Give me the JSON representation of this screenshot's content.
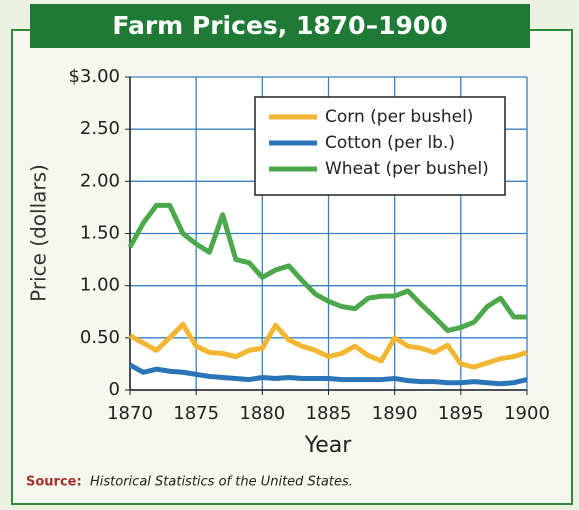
{
  "chart_data": {
    "type": "line",
    "title": "Farm Prices, 1870–1900",
    "x_label": "Year",
    "y_label": "Price (dollars)",
    "source_label": "Source:",
    "source_text": "Historical Statistics of the United States.",
    "x": [
      1870,
      1871,
      1872,
      1873,
      1874,
      1875,
      1876,
      1877,
      1878,
      1879,
      1880,
      1881,
      1882,
      1883,
      1884,
      1885,
      1886,
      1887,
      1888,
      1889,
      1890,
      1891,
      1892,
      1893,
      1894,
      1895,
      1896,
      1897,
      1898,
      1899,
      1900
    ],
    "series": [
      {
        "name": "Corn (per bushel)",
        "color": "#f2b632",
        "values": [
          0.52,
          0.45,
          0.38,
          0.5,
          0.63,
          0.42,
          0.36,
          0.35,
          0.32,
          0.38,
          0.4,
          0.62,
          0.48,
          0.42,
          0.38,
          0.32,
          0.35,
          0.42,
          0.33,
          0.28,
          0.5,
          0.42,
          0.4,
          0.36,
          0.43,
          0.25,
          0.22,
          0.26,
          0.3,
          0.32,
          0.36
        ]
      },
      {
        "name": "Cotton (per lb.)",
        "color": "#2a74b8",
        "values": [
          0.24,
          0.17,
          0.2,
          0.18,
          0.17,
          0.15,
          0.13,
          0.12,
          0.11,
          0.1,
          0.12,
          0.11,
          0.12,
          0.11,
          0.11,
          0.11,
          0.1,
          0.1,
          0.1,
          0.1,
          0.11,
          0.09,
          0.08,
          0.08,
          0.07,
          0.07,
          0.08,
          0.07,
          0.06,
          0.07,
          0.1
        ]
      },
      {
        "name": "Wheat (per bushel)",
        "color": "#4ca84a",
        "values": [
          1.37,
          1.6,
          1.77,
          1.77,
          1.5,
          1.4,
          1.32,
          1.68,
          1.25,
          1.22,
          1.08,
          1.15,
          1.19,
          1.05,
          0.92,
          0.85,
          0.8,
          0.78,
          0.88,
          0.9,
          0.9,
          0.95,
          0.82,
          0.7,
          0.57,
          0.6,
          0.65,
          0.8,
          0.88,
          0.7,
          0.7
        ]
      }
    ],
    "xlim": [
      1870,
      1900
    ],
    "xticks": [
      1870,
      1875,
      1880,
      1885,
      1890,
      1895,
      1900
    ],
    "ylim": [
      0,
      3
    ],
    "yticks": [
      0,
      {
        "value": 0.5,
        "label": "0.50"
      },
      {
        "value": 1,
        "label": "1.00"
      },
      {
        "value": 1.5,
        "label": "1.50"
      },
      {
        "value": 2,
        "label": "2.00"
      },
      {
        "value": 2.5,
        "label": "2.50"
      },
      {
        "value": 3,
        "label": "$3.00"
      }
    ],
    "grid": true,
    "legend": "upper right"
  }
}
